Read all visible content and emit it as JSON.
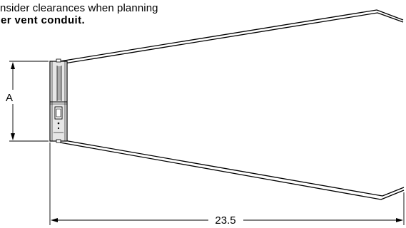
{
  "caption": {
    "line1": "nsider clearances when planning",
    "line2": "er vent conduit."
  },
  "dimensions": {
    "height_label": "A",
    "width_label": "23.5"
  },
  "colors": {
    "line": "#000000",
    "housing_fill": "#e6e6e6",
    "background": "#ffffff"
  }
}
